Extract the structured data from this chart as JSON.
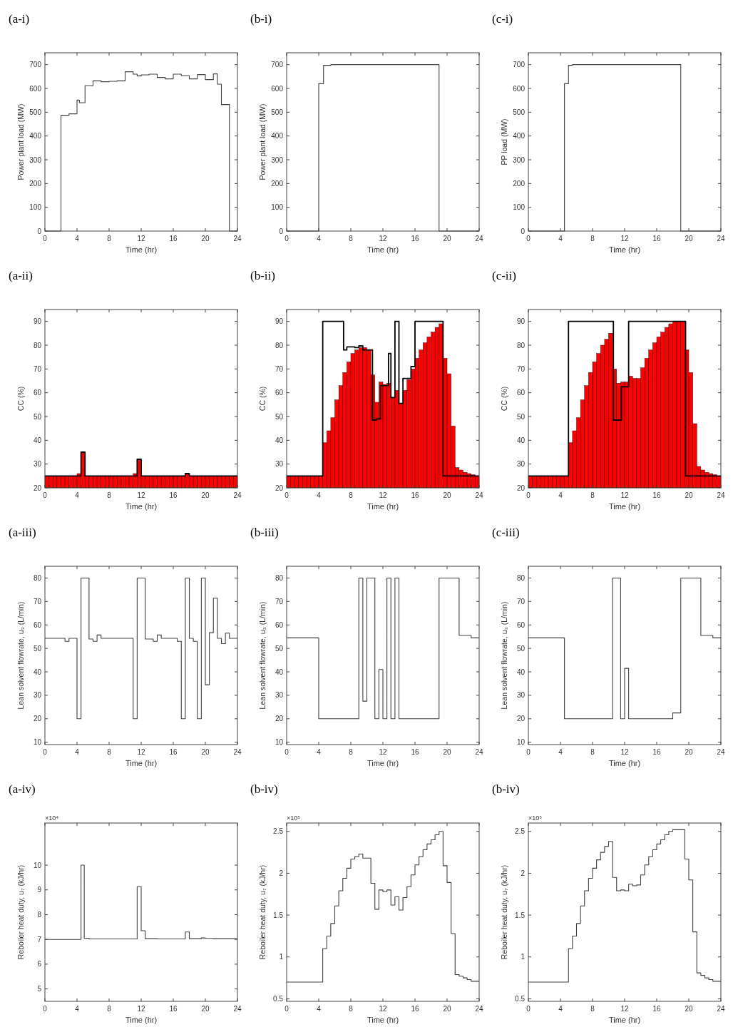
{
  "chart_data": [
    {
      "type": "step",
      "title": "(a-i)",
      "xlabel": "Time (hr)",
      "ylabel": "Power plant load (MW)",
      "xlim": [
        0,
        24
      ],
      "xticks": [
        0,
        4,
        8,
        12,
        16,
        20,
        24
      ],
      "ylim": [
        0,
        750
      ],
      "yticks": [
        0,
        100,
        200,
        300,
        400,
        500,
        600,
        700
      ],
      "series": [
        {
          "color": "#404040",
          "x": [
            0,
            2,
            3,
            4,
            4.3,
            5,
            6,
            7,
            8,
            9,
            10,
            11,
            11.5,
            12,
            13,
            14,
            15,
            16,
            17,
            18,
            19,
            20,
            21,
            21.5,
            22,
            23,
            24
          ],
          "values": [
            0,
            487,
            493,
            551,
            540,
            612,
            632,
            628,
            630,
            632,
            670,
            660,
            653,
            657,
            660,
            646,
            640,
            660,
            654,
            640,
            658,
            637,
            661,
            618,
            532,
            0,
            0
          ]
        }
      ]
    },
    {
      "type": "step",
      "title": "(b-i)",
      "xlabel": "Time (hr)",
      "ylabel": "Power plant load (MW)",
      "xlim": [
        0,
        24
      ],
      "xticks": [
        0,
        4,
        8,
        12,
        16,
        20,
        24
      ],
      "ylim": [
        0,
        750
      ],
      "yticks": [
        0,
        100,
        200,
        300,
        400,
        500,
        600,
        700
      ],
      "series": [
        {
          "color": "#404040",
          "x": [
            0,
            4,
            4.6,
            5.5,
            19,
            24
          ],
          "values": [
            0,
            620,
            697,
            700,
            0,
            0
          ]
        }
      ]
    },
    {
      "type": "step",
      "title": "(c-i)",
      "xlabel": "Time (hr)",
      "ylabel": "PP load (MW)",
      "xlim": [
        0,
        24
      ],
      "xticks": [
        0,
        4,
        8,
        12,
        16,
        20,
        24
      ],
      "ylim": [
        0,
        750
      ],
      "yticks": [
        0,
        100,
        200,
        300,
        400,
        500,
        600,
        700
      ],
      "series": [
        {
          "color": "#404040",
          "x": [
            0,
            4.5,
            5,
            5.5,
            19,
            24
          ],
          "values": [
            0,
            620,
            697,
            700,
            0,
            0
          ]
        }
      ]
    },
    {
      "type": "bar",
      "title": "(a-ii)",
      "xlabel": "Time (hr)",
      "ylabel": "CC (%)",
      "xlim": [
        0,
        24
      ],
      "xticks": [
        0,
        4,
        8,
        12,
        16,
        20,
        24
      ],
      "ylim": [
        20,
        95
      ],
      "yticks": [
        20,
        30,
        40,
        50,
        60,
        70,
        80,
        90
      ],
      "series": [
        {
          "type": "bar",
          "color": "#ff0000",
          "x": [
            0.25,
            0.75,
            1.25,
            1.75,
            2.25,
            2.75,
            3.25,
            3.75,
            4.25,
            4.75,
            5.25,
            5.75,
            6.25,
            6.75,
            7.25,
            7.75,
            8.25,
            8.75,
            9.25,
            9.75,
            10.25,
            10.75,
            11.25,
            11.75,
            12.25,
            12.75,
            13.25,
            13.75,
            14.25,
            14.75,
            15.25,
            15.75,
            16.25,
            16.75,
            17.25,
            17.75,
            18.25,
            18.75,
            19.25,
            19.75,
            20.25,
            20.75,
            21.25,
            21.75,
            22.25,
            22.75,
            23.25,
            23.75
          ],
          "values": [
            25,
            25,
            25,
            25,
            25,
            25,
            25,
            25,
            26,
            35,
            25,
            25,
            25,
            25,
            25,
            25,
            25,
            25,
            25,
            25,
            25,
            25,
            26,
            32,
            25,
            25,
            25,
            25,
            25,
            25,
            25,
            25,
            25,
            25,
            25,
            26,
            25,
            25,
            25,
            25,
            25,
            25,
            25,
            25,
            25,
            25,
            25,
            25
          ]
        },
        {
          "type": "step",
          "color": "#000000",
          "x": [
            0,
            4.5,
            5,
            11.5,
            12,
            17.5,
            18,
            24
          ],
          "values": [
            25,
            35,
            25,
            32,
            25,
            26,
            25,
            25
          ]
        }
      ]
    },
    {
      "type": "bar",
      "title": "(b-ii)",
      "xlabel": "Time (hr)",
      "ylabel": "CC (%)",
      "xlim": [
        0,
        24
      ],
      "xticks": [
        0,
        4,
        8,
        12,
        16,
        20,
        24
      ],
      "ylim": [
        20,
        95
      ],
      "yticks": [
        20,
        30,
        40,
        50,
        60,
        70,
        80,
        90
      ],
      "series": [
        {
          "type": "bar",
          "color": "#ff0000",
          "x": [
            0.25,
            0.75,
            1.25,
            1.75,
            2.25,
            2.75,
            3.25,
            3.75,
            4.25,
            4.75,
            5.25,
            5.75,
            6.25,
            6.75,
            7.25,
            7.75,
            8.25,
            8.75,
            9.25,
            9.75,
            10.25,
            10.75,
            11.25,
            11.75,
            12.25,
            12.75,
            13.25,
            13.75,
            14.25,
            14.75,
            15.25,
            15.75,
            16.25,
            16.75,
            17.25,
            17.75,
            18.25,
            18.75,
            19.25,
            19.75,
            20.25,
            20.75,
            21.25,
            21.75,
            22.25,
            22.75,
            23.25,
            23.75
          ],
          "values": [
            25,
            25,
            25,
            25,
            25,
            25,
            25,
            25,
            25,
            39,
            44,
            49.5,
            57,
            63,
            68.5,
            73,
            76.5,
            78,
            79,
            79,
            78,
            67.5,
            56,
            64.5,
            63.5,
            64,
            58,
            61,
            55.5,
            61,
            65.5,
            70,
            74.5,
            78,
            81,
            83.5,
            85.5,
            87.5,
            89,
            74.5,
            68,
            46,
            28.5,
            27.5,
            26.5,
            26,
            25.5,
            25
          ]
        },
        {
          "type": "step",
          "color": "#000000",
          "x": [
            0,
            4.5,
            7.1,
            7.5,
            8.5,
            9,
            9.5,
            10.7,
            11.2,
            11.7,
            12.7,
            13,
            13.5,
            14,
            14.5,
            15.5,
            16,
            19.5,
            24
          ],
          "values": [
            25,
            90,
            78,
            79.3,
            79,
            79.7,
            78,
            48.5,
            49,
            63,
            76.5,
            58,
            90,
            55.5,
            66,
            71,
            90,
            25,
            25
          ]
        }
      ]
    },
    {
      "type": "bar",
      "title": "(c-ii)",
      "xlabel": "Time (hr)",
      "ylabel": "CC (%)",
      "xlim": [
        0,
        24
      ],
      "xticks": [
        0,
        4,
        8,
        12,
        16,
        20,
        24
      ],
      "ylim": [
        20,
        95
      ],
      "yticks": [
        20,
        30,
        40,
        50,
        60,
        70,
        80,
        90
      ],
      "series": [
        {
          "type": "bar",
          "color": "#ff0000",
          "x": [
            0.25,
            0.75,
            1.25,
            1.75,
            2.25,
            2.75,
            3.25,
            3.75,
            4.25,
            4.75,
            5.25,
            5.75,
            6.25,
            6.75,
            7.25,
            7.75,
            8.25,
            8.75,
            9.25,
            9.75,
            10.25,
            10.75,
            11.25,
            11.75,
            12.25,
            12.75,
            13.25,
            13.75,
            14.25,
            14.75,
            15.25,
            15.75,
            16.25,
            16.75,
            17.25,
            17.75,
            18.25,
            18.75,
            19.25,
            19.75,
            20.25,
            20.75,
            21.25,
            21.75,
            22.25,
            22.75,
            23.25,
            23.75
          ],
          "values": [
            25,
            25,
            25,
            25,
            25,
            25,
            25,
            25,
            25,
            25,
            39,
            44,
            49.5,
            57,
            63,
            68.5,
            73,
            76.5,
            80,
            82.5,
            85,
            70,
            64,
            64.5,
            64.5,
            67,
            66,
            66,
            70.5,
            74.5,
            78,
            81,
            83.5,
            85.5,
            87.5,
            89,
            90,
            90,
            90,
            78,
            68.5,
            47,
            29,
            27.5,
            26.5,
            26,
            25.5,
            25
          ]
        },
        {
          "type": "step",
          "color": "#000000",
          "x": [
            0,
            5,
            10.6,
            11.6,
            12.5,
            19.6,
            24
          ],
          "values": [
            25,
            90,
            48.5,
            62.5,
            90,
            25,
            25
          ]
        }
      ]
    },
    {
      "type": "step",
      "title": "(a-iii)",
      "xlabel": "Time (hr)",
      "ylabel": "Lean solvent flowrate, u₃ (L/min)",
      "xlim": [
        0,
        24
      ],
      "xticks": [
        0,
        4,
        8,
        12,
        16,
        20,
        24
      ],
      "ylim": [
        9,
        85
      ],
      "yticks": [
        10,
        20,
        30,
        40,
        50,
        60,
        70,
        80
      ],
      "series": [
        {
          "color": "#404040",
          "x": [
            0,
            2.5,
            3,
            4,
            4.5,
            5.5,
            6,
            6.5,
            7,
            11,
            11.5,
            12.5,
            13.5,
            14,
            14.5,
            16.5,
            17,
            17.5,
            18,
            18.5,
            19,
            19.5,
            20,
            20.5,
            21,
            21.5,
            22,
            22.5,
            23,
            24
          ],
          "values": [
            54.3,
            53,
            54.3,
            20,
            80,
            54,
            53,
            55.7,
            54.3,
            20,
            80,
            54,
            53,
            55.7,
            54.3,
            53,
            20,
            80,
            54.3,
            53,
            20,
            80,
            34.5,
            56.7,
            71.4,
            54.3,
            52,
            56.5,
            54.3,
            54.3
          ]
        }
      ]
    },
    {
      "type": "step",
      "title": "(b-iii)",
      "xlabel": "Time (hr)",
      "ylabel": "Lean solvent flowrate, u₃ (L/min)",
      "xlim": [
        0,
        24
      ],
      "xticks": [
        0,
        4,
        8,
        12,
        16,
        20,
        24
      ],
      "ylim": [
        9,
        85
      ],
      "yticks": [
        10,
        20,
        30,
        40,
        50,
        60,
        70,
        80
      ],
      "series": [
        {
          "color": "#404040",
          "x": [
            0,
            4,
            9,
            9.5,
            10,
            11,
            11.5,
            12,
            12.5,
            13,
            13.5,
            14,
            19,
            21.5,
            23,
            24
          ],
          "values": [
            54.5,
            20,
            80,
            27.5,
            80,
            20,
            41,
            20,
            80,
            20,
            80,
            20,
            80,
            55.5,
            54.5,
            54.5
          ]
        }
      ]
    },
    {
      "type": "step",
      "title": "(c-iii)",
      "xlabel": "Time (hr)",
      "ylabel": "Lean solvent flowrate, u₃ (L/min)",
      "xlim": [
        0,
        24
      ],
      "xticks": [
        0,
        4,
        8,
        12,
        16,
        20,
        24
      ],
      "ylim": [
        9,
        85
      ],
      "yticks": [
        10,
        20,
        30,
        40,
        50,
        60,
        70,
        80
      ],
      "series": [
        {
          "color": "#404040",
          "x": [
            0,
            4.5,
            10.5,
            11.5,
            12,
            12.5,
            18,
            19,
            21.5,
            23,
            24
          ],
          "values": [
            54.5,
            20,
            80,
            20,
            41.5,
            20,
            22.5,
            80,
            55.5,
            54.5,
            54.5
          ]
        }
      ]
    },
    {
      "type": "step",
      "title": "(a-iv)",
      "xlabel": "Time (hr)",
      "ylabel": "Reboiler heat duty, u₇ (kJ/hr)",
      "annotations": [
        "×10⁴"
      ],
      "xlim": [
        0,
        24
      ],
      "xticks": [
        0,
        4,
        8,
        12,
        16,
        20,
        24
      ],
      "ylim": [
        4.5,
        11.7
      ],
      "yticks": [
        5,
        6,
        7,
        8,
        9,
        10
      ],
      "series": [
        {
          "color": "#404040",
          "x": [
            0,
            4.5,
            4.9,
            5.5,
            11.5,
            12,
            12.5,
            14,
            17.5,
            18,
            19.5,
            20,
            21,
            24
          ],
          "values": [
            7,
            10,
            7.05,
            7.02,
            9.13,
            7.35,
            7.03,
            7.02,
            7.3,
            7.03,
            7.06,
            7.04,
            7.03,
            7.03
          ]
        }
      ]
    },
    {
      "type": "step",
      "title": "(b-iv)",
      "xlabel": "Time (hr)",
      "ylabel": "Reboiler heat duty, u₇ (kJ/hr)",
      "annotations": [
        "×10⁵"
      ],
      "xlim": [
        0,
        24
      ],
      "xticks": [
        0,
        4,
        8,
        12,
        16,
        20,
        24
      ],
      "ylim": [
        0.47,
        2.6
      ],
      "yticks": [
        0.5,
        1,
        1.5,
        2,
        2.5
      ],
      "series": [
        {
          "color": "#404040",
          "x": [
            0,
            4.5,
            5,
            5.5,
            6,
            6.5,
            7,
            7.5,
            8,
            8.5,
            9,
            9.5,
            10.5,
            11,
            11.5,
            12,
            12.5,
            13,
            13.5,
            14,
            14.5,
            15,
            15.5,
            16,
            16.5,
            17,
            17.5,
            18,
            18.5,
            19,
            19.5,
            20,
            20.5,
            21,
            21.5,
            22,
            22.5,
            23,
            24
          ],
          "values": [
            0.7,
            1.1,
            1.25,
            1.4,
            1.61,
            1.79,
            1.94,
            2.06,
            2.17,
            2.2,
            2.23,
            2.18,
            1.88,
            1.57,
            1.8,
            1.78,
            1.8,
            1.62,
            1.72,
            1.56,
            1.71,
            1.84,
            1.98,
            2.1,
            2.2,
            2.28,
            2.35,
            2.4,
            2.46,
            2.5,
            2.09,
            1.89,
            1.28,
            0.79,
            0.77,
            0.75,
            0.73,
            0.71,
            0.71
          ]
        }
      ]
    },
    {
      "type": "step",
      "title": "(b-iv)",
      "xlabel": "Time (hr)",
      "ylabel": "Reboiler heat duty, u₇ (kJ/hr)",
      "annotations": [
        "×10⁵"
      ],
      "xlim": [
        0,
        24
      ],
      "xticks": [
        0,
        4,
        8,
        12,
        16,
        20,
        24
      ],
      "ylim": [
        0.47,
        2.6
      ],
      "yticks": [
        0.5,
        1,
        1.5,
        2,
        2.5
      ],
      "series": [
        {
          "color": "#404040",
          "x": [
            0,
            5,
            5.5,
            6,
            6.5,
            7,
            7.5,
            8,
            8.5,
            9,
            9.5,
            10,
            10.5,
            11,
            11.5,
            12,
            12.5,
            13,
            13.5,
            14,
            14.5,
            15,
            15.5,
            16,
            16.5,
            17,
            17.5,
            18,
            19.5,
            20,
            20.5,
            21,
            21.5,
            22,
            22.5,
            23,
            24
          ],
          "values": [
            0.7,
            1.1,
            1.25,
            1.4,
            1.61,
            1.79,
            1.94,
            2.06,
            2.16,
            2.25,
            2.32,
            2.38,
            1.95,
            1.79,
            1.8,
            1.79,
            1.87,
            1.85,
            1.86,
            1.98,
            2.1,
            2.2,
            2.28,
            2.35,
            2.4,
            2.46,
            2.5,
            2.52,
            2.17,
            1.92,
            1.3,
            0.81,
            0.78,
            0.75,
            0.73,
            0.71,
            0.71
          ]
        }
      ]
    }
  ]
}
